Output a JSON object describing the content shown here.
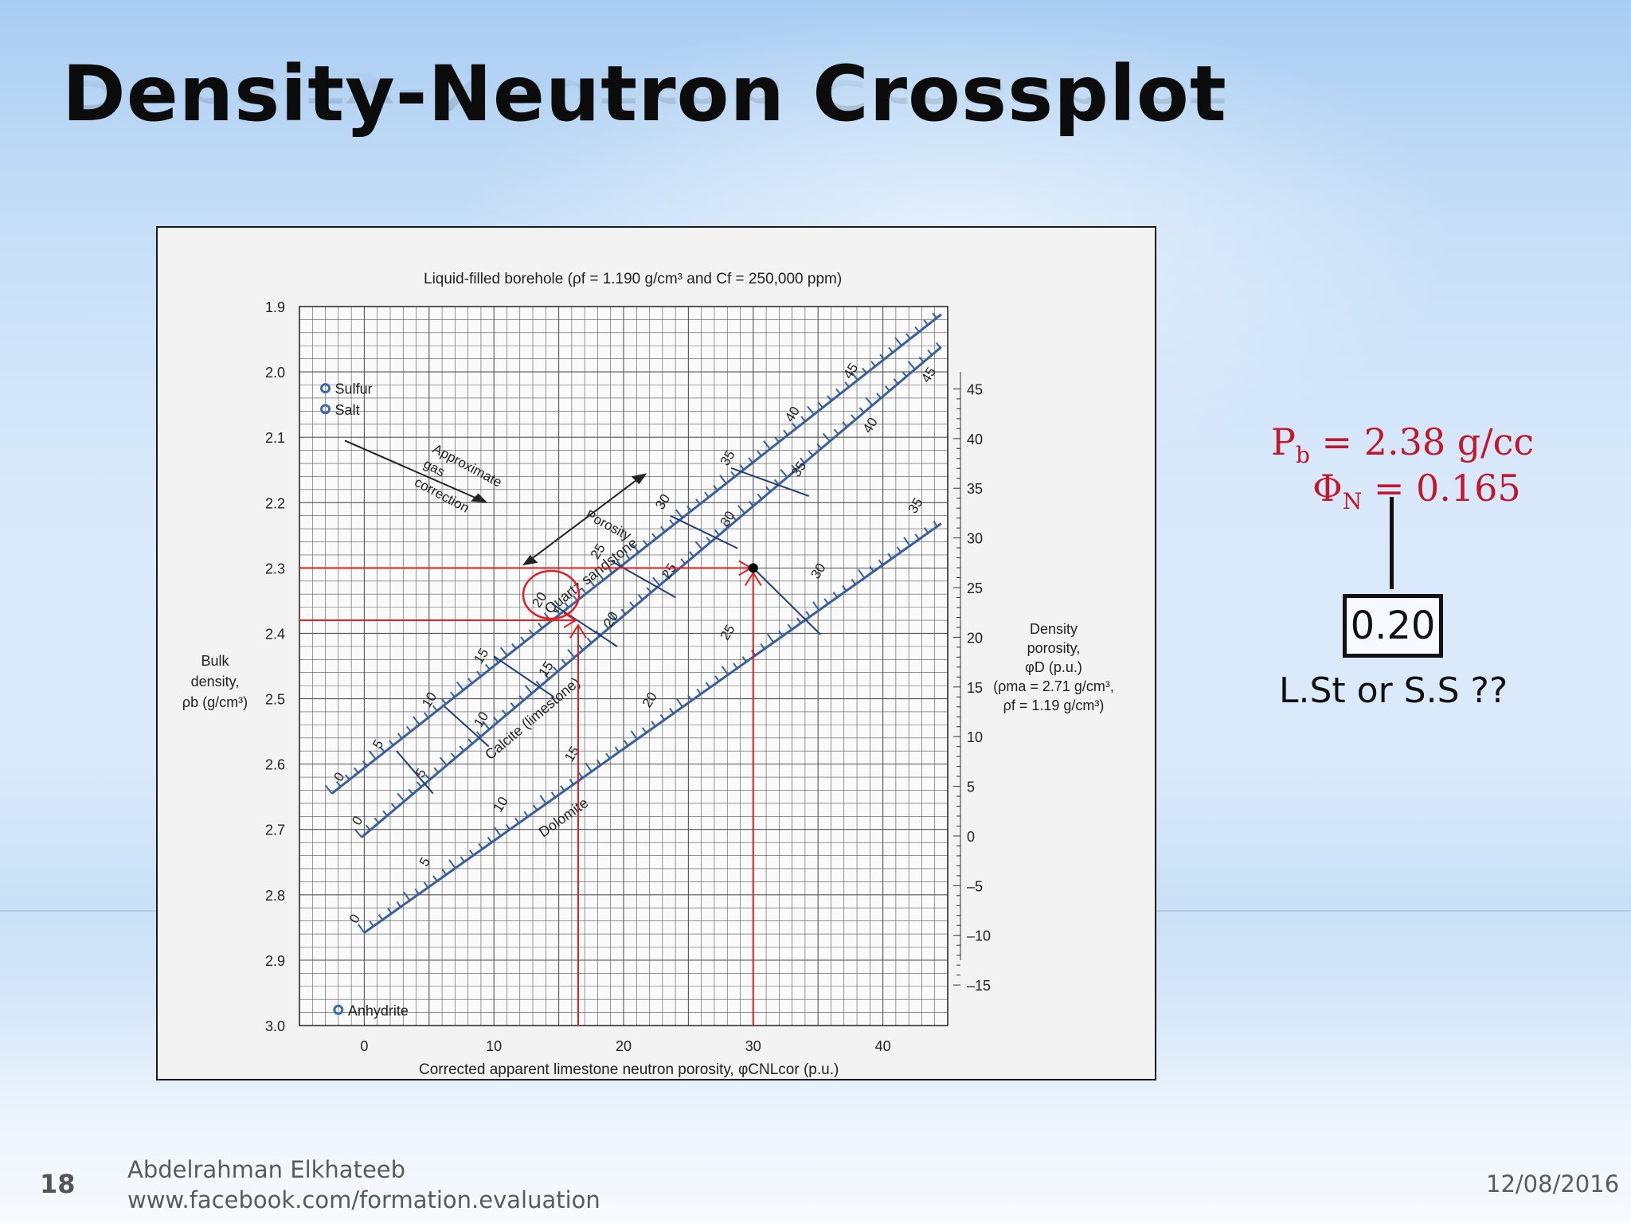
{
  "slide": {
    "title": "Density-Neutron Crossplot",
    "number": "18",
    "author": "Abdelrahman Elkhateeb",
    "website": "www.facebook.com/formation.evaluation",
    "date": "12/08/2016"
  },
  "calculation": {
    "rho_b": {
      "symbol": "P",
      "sub": "b",
      "value": "= 2.38 g/cc"
    },
    "phi_n": {
      "symbol": "Φ",
      "sub": "N",
      "value": "= 0.165"
    },
    "result": "0.20",
    "question": "L.St or S.S ??"
  },
  "colors": {
    "line": "#3a5f9e",
    "pick": "#e02020",
    "grid": "#555555"
  },
  "chart_data": {
    "type": "scatter",
    "title": "Liquid-filled borehole (ρf = 1.190 g/cm³ and Cf = 250,000 ppm)",
    "xlabel": "Corrected apparent limestone neutron porosity, φCNLcor (p.u.)",
    "ylabel_lines": [
      "Bulk",
      "density,",
      "ρb (g/cm³)"
    ],
    "right_label_lines": [
      "Density",
      "porosity,",
      "φD (p.u.)",
      "(ρma = 2.71 g/cm³,",
      "ρf = 1.19 g/cm³)"
    ],
    "xlim": [
      -5,
      45
    ],
    "ylim": [
      1.9,
      3.0
    ],
    "y_inverted": true,
    "x_ticks": [
      0,
      10,
      20,
      30,
      40
    ],
    "y_ticks": [
      "1.9",
      "2.0",
      "2.1",
      "2.2",
      "2.3",
      "2.4",
      "2.5",
      "2.6",
      "2.7",
      "2.8",
      "2.9",
      "3.0"
    ],
    "density_porosity_ticks": [
      "45",
      "40",
      "35",
      "30",
      "25",
      "20",
      "15",
      "10",
      "5",
      "0",
      "–5",
      "–10",
      "–15"
    ],
    "density_porosity_values": [
      45,
      40,
      35,
      30,
      25,
      20,
      15,
      10,
      5,
      0,
      -5,
      -10,
      -15
    ],
    "grid": true,
    "lithology_lines": [
      {
        "name": "Quartz sandstone",
        "start": [
          -2.5,
          2.645
        ],
        "end": [
          44.5,
          1.912
        ],
        "porosity_labels": [
          {
            "text": "0",
            "x": -1.8,
            "y": 2.628
          },
          {
            "text": "5",
            "x": 1.2,
            "y": 2.578
          },
          {
            "text": "10",
            "x": 5.0,
            "y": 2.515
          },
          {
            "text": "15",
            "x": 9.0,
            "y": 2.448
          },
          {
            "text": "20",
            "x": 13.5,
            "y": 2.362
          },
          {
            "text": "25",
            "x": 18.0,
            "y": 2.288
          },
          {
            "text": "30",
            "x": 23.0,
            "y": 2.212
          },
          {
            "text": "35",
            "x": 28.0,
            "y": 2.145
          },
          {
            "text": "40",
            "x": 33.0,
            "y": 2.078
          },
          {
            "text": "45",
            "x": 37.5,
            "y": 2.012
          }
        ]
      },
      {
        "name": "Calcite (limestone)",
        "start": [
          -0.2,
          2.712
        ],
        "end": [
          44.5,
          1.962
        ],
        "porosity_labels": [
          {
            "text": "0",
            "x": -0.4,
            "y": 2.695
          },
          {
            "text": "5",
            "x": 4.5,
            "y": 2.622
          },
          {
            "text": "10",
            "x": 9.0,
            "y": 2.545
          },
          {
            "text": "15",
            "x": 14.0,
            "y": 2.468
          },
          {
            "text": "20",
            "x": 19.0,
            "y": 2.392
          },
          {
            "text": "25",
            "x": 23.5,
            "y": 2.318
          },
          {
            "text": "30",
            "x": 28.0,
            "y": 2.238
          },
          {
            "text": "35",
            "x": 33.5,
            "y": 2.162
          },
          {
            "text": "40",
            "x": 39.0,
            "y": 2.095
          },
          {
            "text": "45",
            "x": 43.5,
            "y": 2.018
          }
        ]
      },
      {
        "name": "Dolomite",
        "start": [
          0.0,
          2.858
        ],
        "end": [
          44.5,
          2.232
        ],
        "porosity_labels": [
          {
            "text": "0",
            "x": -0.6,
            "y": 2.845
          },
          {
            "text": "5",
            "x": 4.8,
            "y": 2.758
          },
          {
            "text": "10",
            "x": 10.5,
            "y": 2.675
          },
          {
            "text": "15",
            "x": 16.0,
            "y": 2.598
          },
          {
            "text": "20",
            "x": 22.0,
            "y": 2.515
          },
          {
            "text": "25",
            "x": 28.0,
            "y": 2.412
          },
          {
            "text": "30",
            "x": 35.0,
            "y": 2.318
          },
          {
            "text": "35",
            "x": 42.5,
            "y": 2.218
          }
        ]
      }
    ],
    "connector_lines": [
      [
        [
          2.5,
          2.58
        ],
        [
          5.3,
          2.645
        ]
      ],
      [
        [
          6.2,
          2.512
        ],
        [
          9.6,
          2.573
        ]
      ],
      [
        [
          10.0,
          2.435
        ],
        [
          14.6,
          2.497
        ]
      ],
      [
        [
          14.5,
          2.355
        ],
        [
          19.5,
          2.42
        ]
      ],
      [
        [
          19.1,
          2.29
        ],
        [
          24.0,
          2.345
        ]
      ],
      [
        [
          23.6,
          2.22
        ],
        [
          28.8,
          2.27
        ]
      ],
      [
        [
          28.3,
          2.147
        ],
        [
          34.3,
          2.19
        ]
      ],
      [
        [
          30.0,
          2.3
        ],
        [
          35.2,
          2.402
        ]
      ]
    ],
    "mineral_points": [
      {
        "name": "Sulfur",
        "x": -3.0,
        "y": 2.025
      },
      {
        "name": "Salt",
        "x": -3.0,
        "y": 2.057
      },
      {
        "name": "Anhydrite",
        "x": -2.0,
        "y": 2.976
      }
    ],
    "annotations": [
      {
        "text": "Approximate",
        "x": 5.2,
        "y": 2.122
      },
      {
        "text": "gas",
        "x": 4.5,
        "y": 2.145
      },
      {
        "text": "correction",
        "x": 3.8,
        "y": 2.173
      },
      {
        "text": "Porosity",
        "x": 17.0,
        "y": 2.223
      }
    ],
    "picks": [
      {
        "neutron": 16.5,
        "density": 2.38,
        "lithology": "Quartz sandstone",
        "porosity": 20
      },
      {
        "neutron": 30,
        "density": 2.3,
        "lithology": "Calcite (limestone)",
        "porosity": 30
      }
    ]
  }
}
